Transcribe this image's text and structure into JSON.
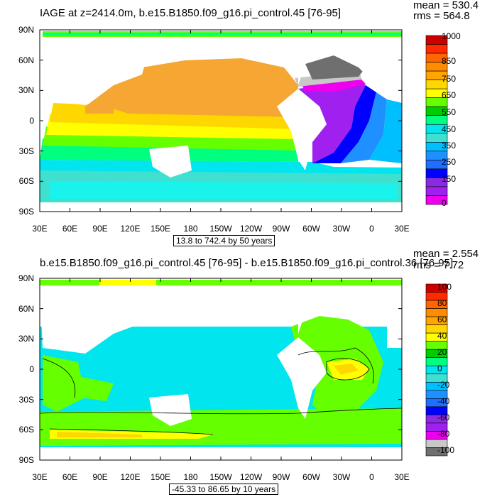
{
  "colors": {
    "ocean_top": "#f6a632",
    "land": "#ffffff",
    "palette": [
      "#6f6f6f",
      "#c8c8c8",
      "#ee00ee",
      "#a020f0",
      "#8a2be2",
      "#0000ff",
      "#1e6fff",
      "#1e90ff",
      "#00bfff",
      "#40e0d0",
      "#00e5ee",
      "#00ff7f",
      "#00cd00",
      "#66ff00",
      "#ffff00",
      "#ffd700",
      "#ffa500",
      "#ff8c00",
      "#ff6600",
      "#ff2a00",
      "#cd0000"
    ]
  },
  "panel1": {
    "title": "IAGE at z=2414.0m, b.e15.B1850.f09_g16.pi_control.45 [76-95]",
    "mean": "mean = 530.4",
    "rms": "rms = 564.8",
    "contour_info": "13.8 to 742.4 by 50 years",
    "colorbar_labels": [
      "1000",
      "850",
      "750",
      "650",
      "550",
      "450",
      "350",
      "250",
      "150",
      "0"
    ]
  },
  "panel2": {
    "title": "b.e15.B1850.f09_g16.pi_control.45 [76-95] - b.e15.B1850.f09_g16.pi_control.36 [76-95]",
    "mean": "mean = 2.554",
    "rms": "rms = 7.72",
    "contour_info": "-45.33 to 86.65 by 10 years",
    "colorbar_labels": [
      "100",
      "80",
      "60",
      "40",
      "20",
      "0",
      "-20",
      "-40",
      "-60",
      "-80",
      "-100"
    ]
  },
  "axes": {
    "y_ticks": [
      "90N",
      "60N",
      "30N",
      "0",
      "30S",
      "60S",
      "90S"
    ],
    "x_ticks": [
      "30E",
      "60E",
      "90E",
      "120E",
      "150E",
      "180",
      "150W",
      "120W",
      "90W",
      "60W",
      "30W",
      "0",
      "30E"
    ]
  },
  "chart_data": [
    {
      "type": "heatmap",
      "title": "IAGE at z=2414.0m, b.e15.B1850.f09_g16.pi_control.45 [76-95]",
      "xlabel": "",
      "ylabel": "",
      "x_range": [
        "30E",
        "30E"
      ],
      "y_range": [
        "90S",
        "90N"
      ],
      "colorbar_levels": [
        0,
        150,
        250,
        350,
        450,
        550,
        650,
        750,
        850,
        1000
      ],
      "stats": {
        "mean": 530.4,
        "rms": 564.8
      },
      "contour": {
        "min": 13.8,
        "max": 742.4,
        "interval": 50
      }
    },
    {
      "type": "heatmap",
      "title": "b.e15.B1850.f09_g16.pi_control.45 [76-95] - b.e15.B1850.f09_g16.pi_control.36 [76-95]",
      "xlabel": "",
      "ylabel": "",
      "x_range": [
        "30E",
        "30E"
      ],
      "y_range": [
        "90S",
        "90N"
      ],
      "colorbar_levels": [
        -100,
        -80,
        -60,
        -40,
        -20,
        0,
        20,
        40,
        60,
        80,
        100
      ],
      "stats": {
        "mean": 2.554,
        "rms": 7.72
      },
      "contour": {
        "min": -45.33,
        "max": 86.65,
        "interval": 10
      }
    }
  ]
}
